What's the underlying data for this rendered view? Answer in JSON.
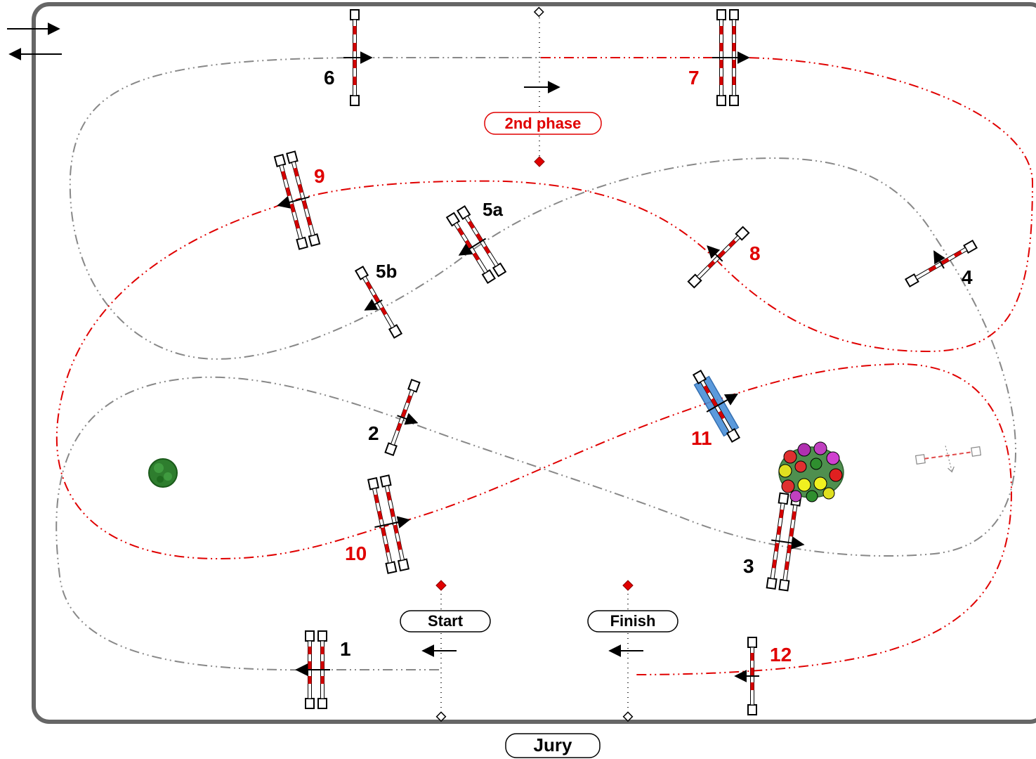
{
  "colors": {
    "first_phase": "#000000",
    "second_phase": "#e00000",
    "first_track": "#888888",
    "second_track": "#e00000",
    "pole_red": "#d40000",
    "water": "#4a90d9",
    "tree": "#2e7d2e"
  },
  "legend": {
    "icon": "direction-arrows-icon"
  },
  "markers": {
    "phase2": "2nd phase",
    "start": "Start",
    "finish": "Finish",
    "jury": "Jury"
  },
  "obstacles": [
    {
      "id": "1",
      "label": "1",
      "phase": 1,
      "kind": "oxer"
    },
    {
      "id": "2",
      "label": "2",
      "phase": 1,
      "kind": "vertical"
    },
    {
      "id": "3",
      "label": "3",
      "phase": 1,
      "kind": "oxer"
    },
    {
      "id": "4",
      "label": "4",
      "phase": 1,
      "kind": "vertical"
    },
    {
      "id": "5a",
      "label": "5a",
      "phase": 1,
      "kind": "oxer"
    },
    {
      "id": "5b",
      "label": "5b",
      "phase": 1,
      "kind": "vertical"
    },
    {
      "id": "6",
      "label": "6",
      "phase": 1,
      "kind": "vertical"
    },
    {
      "id": "7",
      "label": "7",
      "phase": 2,
      "kind": "oxer"
    },
    {
      "id": "8",
      "label": "8",
      "phase": 2,
      "kind": "vertical"
    },
    {
      "id": "9",
      "label": "9",
      "phase": 2,
      "kind": "oxer"
    },
    {
      "id": "10",
      "label": "10",
      "phase": 2,
      "kind": "oxer"
    },
    {
      "id": "11",
      "label": "11",
      "phase": 2,
      "kind": "water"
    },
    {
      "id": "12",
      "label": "12",
      "phase": 2,
      "kind": "vertical"
    }
  ],
  "decor": {
    "tree": "tree-icon",
    "flowers": "flower-bed-icon",
    "spare": "spare-fence-icon"
  }
}
